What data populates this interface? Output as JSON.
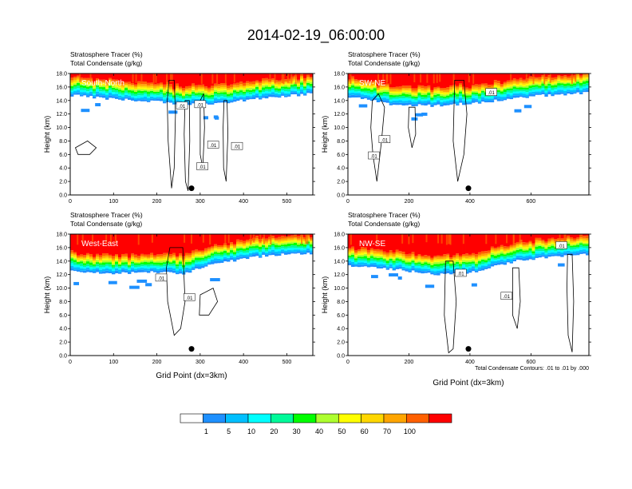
{
  "title": "2014-02-19_06:00:00",
  "colors": {
    "bins": [
      "#ffffff",
      "#1e90ff",
      "#00bfff",
      "#00ffff",
      "#00fa9a",
      "#00ff00",
      "#adff2f",
      "#ffff00",
      "#ffd700",
      "#ffa500",
      "#ff6000",
      "#ff0000"
    ],
    "contour": "#000000",
    "background": "#ffffff"
  },
  "colorbar": {
    "labels": [
      "1",
      "5",
      "10",
      "20",
      "30",
      "40",
      "50",
      "60",
      "70",
      "100"
    ]
  },
  "footnote": "Total Condensate Contours: .01 to .01 by .000",
  "chart_data": [
    {
      "type": "heatmap",
      "panel_label": "South-North",
      "title_lines": [
        "Stratosphere Tracer   (%)",
        "Total Condensate   (g/kg)"
      ],
      "ylabel": "Height (km)",
      "xlabel": "",
      "ylim": [
        0,
        18
      ],
      "yticks": [
        "0.0",
        "2.0",
        "4.0",
        "6.0",
        "8.0",
        "10.0",
        "12.0",
        "14.0",
        "16.0",
        "18.0"
      ],
      "xlim": [
        0,
        560
      ],
      "xticks": [
        0,
        100,
        200,
        300,
        400,
        500
      ],
      "contour_labels": [
        ".01",
        ".01",
        ".01",
        ".01",
        ".01"
      ],
      "marker_x": 280,
      "marker_y": 1.0,
      "layer_bottoms": [
        [
          0,
          14.8
        ],
        [
          100,
          14.2
        ],
        [
          200,
          13.8
        ],
        [
          260,
          13.4
        ],
        [
          350,
          13.6
        ],
        [
          450,
          14.4
        ],
        [
          560,
          15.0
        ]
      ]
    },
    {
      "type": "heatmap",
      "panel_label": "SW-NE",
      "title_lines": [
        "Stratosphere Tracer   (%)",
        "Total Condensate   (g/kg)"
      ],
      "ylabel": "Height (km)",
      "xlabel": "",
      "ylim": [
        0,
        18
      ],
      "yticks": [
        "0.0",
        "2.0",
        "4.0",
        "6.0",
        "8.0",
        "10.0",
        "12.0",
        "14.0",
        "16.0",
        "18.0"
      ],
      "xlim": [
        0,
        790
      ],
      "xticks": [
        0,
        200,
        400,
        600
      ],
      "contour_labels": [
        ".01",
        ".01",
        ".01"
      ],
      "marker_x": 395,
      "marker_y": 1.0,
      "layer_bottoms": [
        [
          0,
          14.6
        ],
        [
          150,
          13.4
        ],
        [
          300,
          13.2
        ],
        [
          450,
          13.8
        ],
        [
          600,
          14.6
        ],
        [
          790,
          15.2
        ]
      ]
    },
    {
      "type": "heatmap",
      "panel_label": "West-East",
      "title_lines": [
        "Stratosphere Tracer   (%)",
        "Total Condensate   (g/kg)"
      ],
      "ylabel": "Height (km)",
      "xlabel": "Grid Point (dx=3km)",
      "ylim": [
        0,
        18
      ],
      "yticks": [
        "0.0",
        "2.0",
        "4.0",
        "6.0",
        "8.0",
        "10.0",
        "12.0",
        "14.0",
        "16.0",
        "18.0"
      ],
      "xlim": [
        0,
        560
      ],
      "xticks": [
        0,
        100,
        200,
        300,
        400,
        500
      ],
      "contour_labels": [
        ".01",
        ".01"
      ],
      "marker_x": 280,
      "marker_y": 1.0,
      "layer_bottoms": [
        [
          0,
          12.6
        ],
        [
          100,
          12.2
        ],
        [
          200,
          12.4
        ],
        [
          260,
          12.0
        ],
        [
          330,
          13.6
        ],
        [
          450,
          14.8
        ],
        [
          560,
          15.2
        ]
      ]
    },
    {
      "type": "heatmap",
      "panel_label": "NW-SE",
      "title_lines": [
        "Stratosphere Tracer   (%)",
        "Total Condensate   (g/kg)"
      ],
      "ylabel": "Height (km)",
      "xlabel": "Grid Point (dx=3km)",
      "ylim": [
        0,
        18
      ],
      "yticks": [
        "0.0",
        "2.0",
        "4.0",
        "6.0",
        "8.0",
        "10.0",
        "12.0",
        "14.0",
        "16.0",
        "18.0"
      ],
      "xlim": [
        0,
        790
      ],
      "xticks": [
        0,
        200,
        400,
        600
      ],
      "contour_labels": [
        ".01",
        ".01",
        ".01"
      ],
      "marker_x": 395,
      "marker_y": 1.0,
      "layer_bottoms": [
        [
          0,
          13.4
        ],
        [
          150,
          12.8
        ],
        [
          300,
          12.0
        ],
        [
          420,
          12.4
        ],
        [
          550,
          14.0
        ],
        [
          700,
          14.8
        ],
        [
          790,
          15.0
        ]
      ]
    }
  ]
}
